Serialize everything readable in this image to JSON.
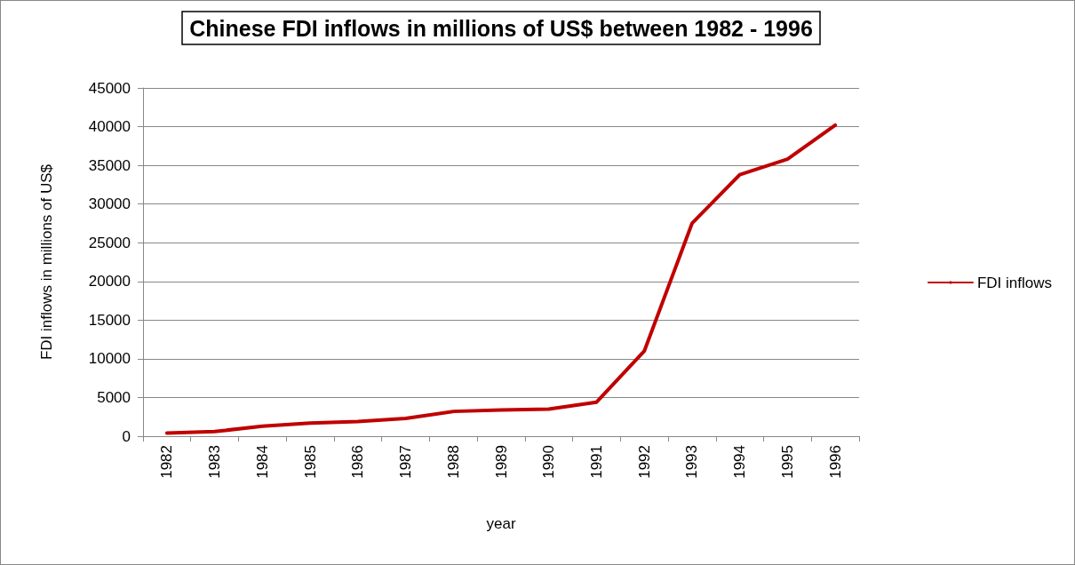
{
  "chart_data": {
    "type": "line",
    "title": "Chinese FDI inflows in millions of US$ between 1982 - 1996",
    "xlabel": "year",
    "ylabel": "FDI inflows in millions of US$",
    "categories": [
      "1982",
      "1983",
      "1984",
      "1985",
      "1986",
      "1987",
      "1988",
      "1989",
      "1990",
      "1991",
      "1992",
      "1993",
      "1994",
      "1995",
      "1996"
    ],
    "series": [
      {
        "name": "FDI inflows",
        "color": "#c00000",
        "values": [
          400,
          600,
          1300,
          1700,
          1900,
          2300,
          3200,
          3400,
          3500,
          4400,
          11000,
          27500,
          33800,
          35800,
          40200
        ]
      }
    ],
    "ylim": [
      0,
      45000
    ],
    "yticks": [
      0,
      5000,
      10000,
      15000,
      20000,
      25000,
      30000,
      35000,
      40000,
      45000
    ],
    "grid": "y",
    "legend": "right",
    "marker": "none",
    "line_style": "solid"
  }
}
